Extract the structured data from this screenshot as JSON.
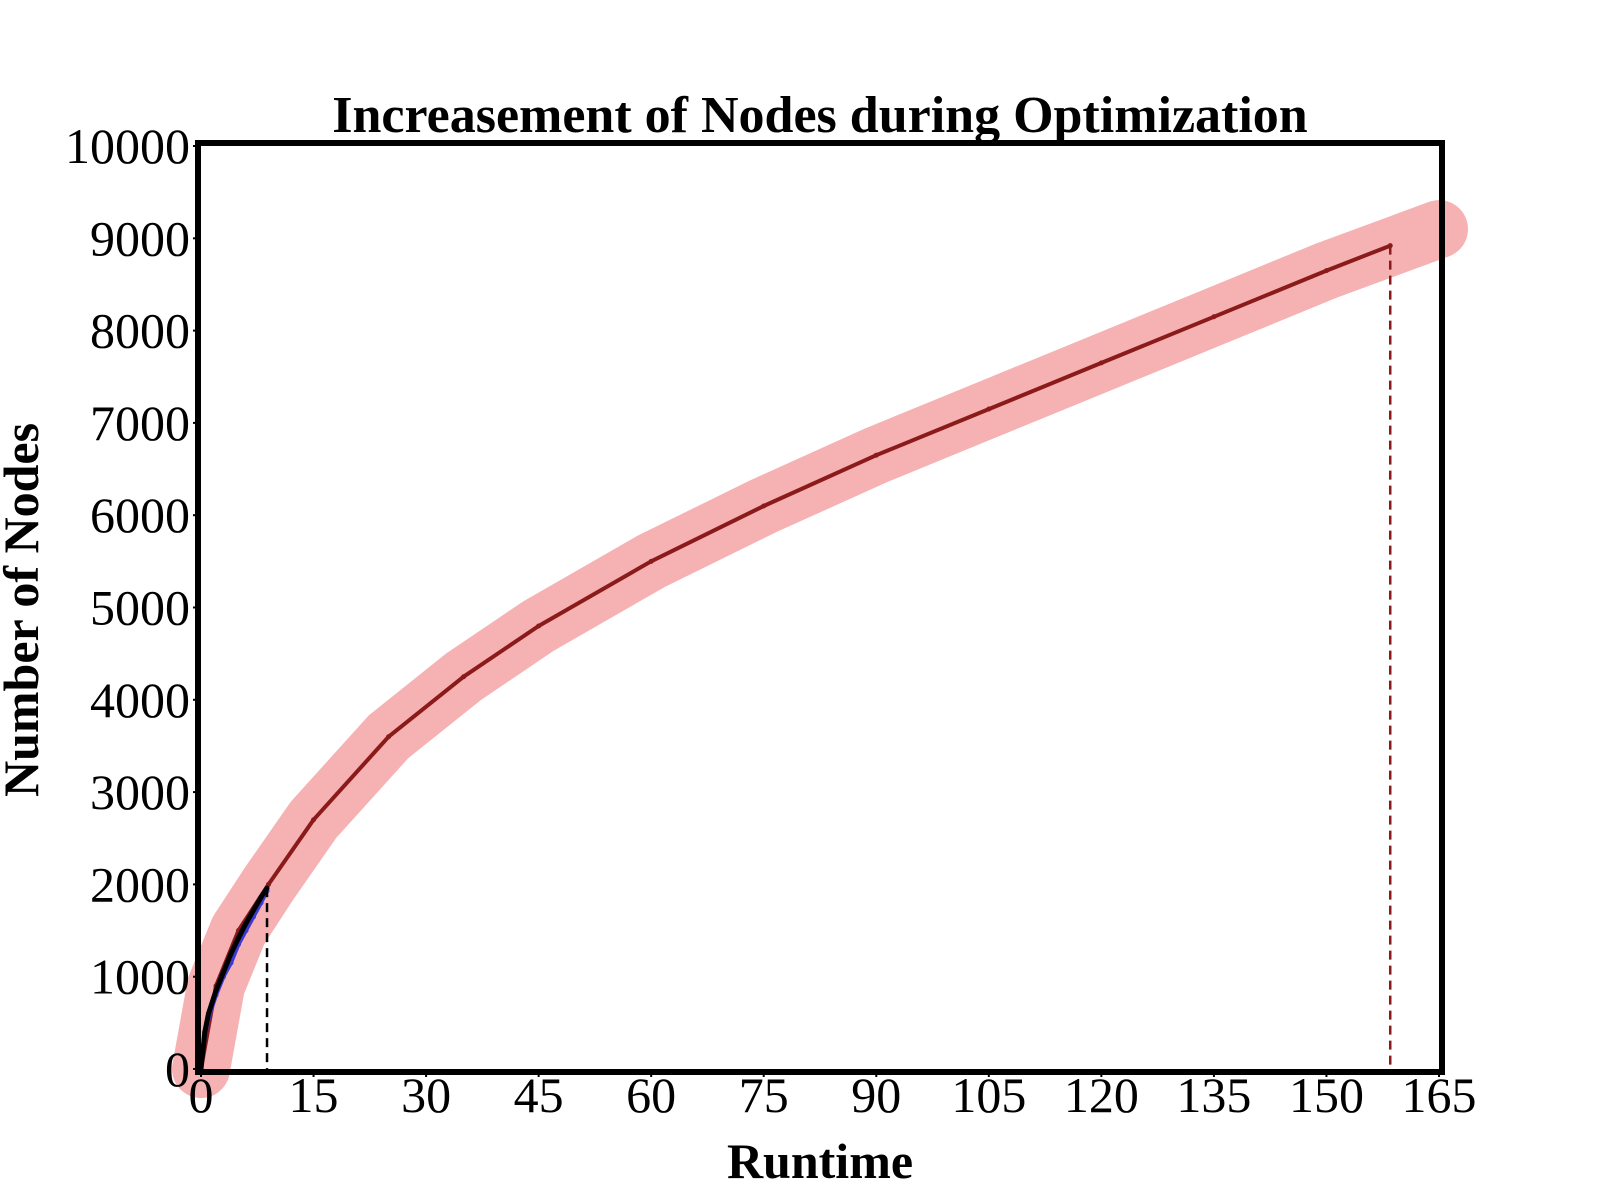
{
  "chart_data": {
    "type": "line",
    "title": "Increasement of Nodes during Optimization",
    "xlabel": "Runtime",
    "ylabel": "Number of Nodes",
    "xlim": [
      0,
      165
    ],
    "ylim": [
      0,
      10000
    ],
    "xticks": [
      "0",
      "15",
      "30",
      "45",
      "60",
      "75",
      "90",
      "105",
      "120",
      "135",
      "150",
      "165"
    ],
    "yticks": [
      "0",
      "1000",
      "2000",
      "3000",
      "4000",
      "5000",
      "6000",
      "7000",
      "8000",
      "9000",
      "10000"
    ],
    "grid": false,
    "legend": "none",
    "series": [
      {
        "style": "band",
        "color": "#f4a3a6",
        "x": [
          0,
          2,
          5,
          9,
          15,
          25,
          35,
          45,
          60,
          75,
          90,
          105,
          120,
          135,
          150,
          160,
          165
        ],
        "values": [
          0,
          900,
          1500,
          2000,
          2700,
          3600,
          4250,
          4800,
          5500,
          6100,
          6650,
          7150,
          7650,
          8150,
          8650,
          8950,
          9100
        ]
      },
      {
        "style": "solid",
        "color": "#8b1a1a",
        "x": [
          0,
          2,
          5,
          9,
          15,
          25,
          35,
          45,
          60,
          75,
          90,
          105,
          120,
          135,
          150,
          158.5
        ],
        "values": [
          0,
          900,
          1500,
          2000,
          2700,
          3600,
          4250,
          4800,
          5500,
          6100,
          6650,
          7150,
          7650,
          8150,
          8650,
          8920
        ],
        "end_marker": {
          "x": 158.5,
          "y": 8920,
          "dashed_drop": true
        }
      },
      {
        "style": "solid",
        "color": "#3a3ad0",
        "x": [
          0,
          0.5,
          1,
          2,
          3,
          4,
          5,
          6,
          7,
          8,
          8.8
        ],
        "values": [
          0,
          350,
          550,
          800,
          1000,
          1150,
          1350,
          1500,
          1650,
          1800,
          1930
        ]
      },
      {
        "style": "solid",
        "color": "#000000",
        "x": [
          0,
          0.5,
          1,
          2,
          3,
          4,
          5,
          6,
          7,
          8,
          8.8
        ],
        "values": [
          0,
          400,
          600,
          850,
          1050,
          1250,
          1420,
          1580,
          1720,
          1860,
          1960
        ],
        "end_marker": {
          "x": 8.8,
          "y": 1960,
          "dashed_drop": true
        }
      }
    ]
  }
}
